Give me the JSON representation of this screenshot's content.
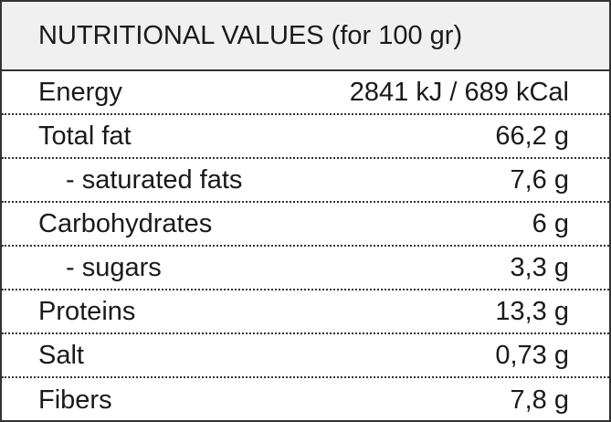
{
  "header": {
    "title": "NUTRITIONAL VALUES (for 100 gr)"
  },
  "table": {
    "rows": [
      [
        "Energy",
        "2841 kJ / 689 kCal"
      ],
      [
        "Total fat",
        "66,2 g"
      ],
      [
        "- saturated fats",
        "7,6 g"
      ],
      [
        "Carbohydrates",
        "6 g"
      ],
      [
        "- sugars",
        "3,3 g"
      ],
      [
        "Proteins",
        "13,3 g"
      ],
      [
        "Salt",
        "0,73 g"
      ],
      [
        "Fibers",
        "7,8 g"
      ]
    ]
  }
}
